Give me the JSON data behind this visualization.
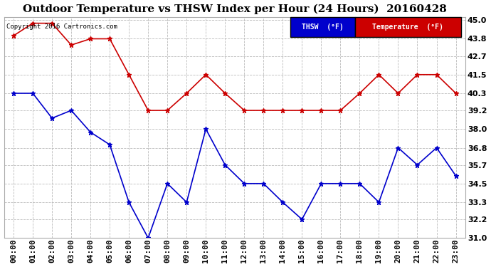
{
  "title": "Outdoor Temperature vs THSW Index per Hour (24 Hours)  20160428",
  "copyright": "Copyright 2016 Cartronics.com",
  "background_color": "#ffffff",
  "plot_bg_color": "#ffffff",
  "grid_color": "#bbbbbb",
  "hours": [
    "00:00",
    "01:00",
    "02:00",
    "03:00",
    "04:00",
    "05:00",
    "06:00",
    "07:00",
    "08:00",
    "09:00",
    "10:00",
    "11:00",
    "12:00",
    "13:00",
    "14:00",
    "15:00",
    "16:00",
    "17:00",
    "18:00",
    "19:00",
    "20:00",
    "21:00",
    "22:00",
    "23:00"
  ],
  "thsw": [
    40.3,
    40.3,
    38.7,
    39.2,
    37.8,
    37.0,
    33.3,
    31.0,
    34.5,
    33.3,
    38.0,
    35.7,
    34.5,
    34.5,
    33.3,
    32.2,
    34.5,
    34.5,
    34.5,
    33.3,
    36.8,
    35.7,
    36.8,
    35.0
  ],
  "temperature": [
    44.0,
    44.8,
    44.8,
    43.4,
    43.8,
    43.8,
    41.5,
    39.2,
    39.2,
    40.3,
    41.5,
    40.3,
    39.2,
    39.2,
    39.2,
    39.2,
    39.2,
    39.2,
    40.3,
    41.5,
    40.3,
    41.5,
    41.5,
    40.3
  ],
  "thsw_color": "#0000cc",
  "temp_color": "#cc0000",
  "ylim_min": 31.0,
  "ylim_max": 45.2,
  "yticks": [
    31.0,
    32.2,
    33.3,
    34.5,
    35.7,
    36.8,
    38.0,
    39.2,
    40.3,
    41.5,
    42.7,
    43.8,
    45.0
  ],
  "legend_thsw_bg": "#0000cc",
  "legend_temp_bg": "#cc0000",
  "title_fontsize": 11,
  "axis_fontsize": 8,
  "marker": "*",
  "marker_size": 5
}
